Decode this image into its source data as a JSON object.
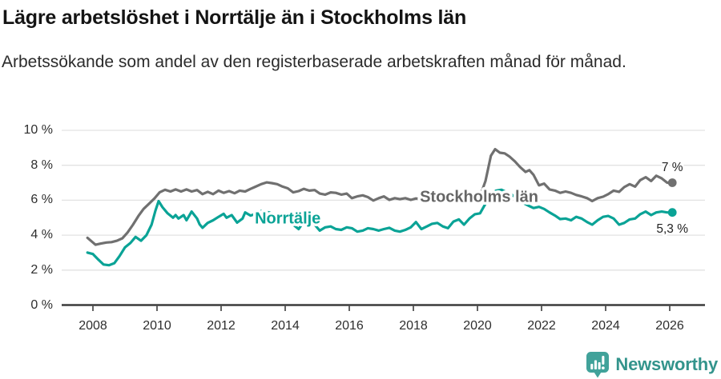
{
  "header": {
    "title": "Lägre arbetslöshet i Norrtälje än i Stockholms län",
    "subtitle": "Arbetssökande som andel av den registerbaserade arbetskraften månad för månad."
  },
  "chart_data": {
    "type": "line",
    "title": "Lägre arbetslöshet i Norrtälje än i Stockholms län",
    "subtitle": "Arbetssökande som andel av den registerbaserade arbetskraften månad för månad.",
    "grid": "horizontal",
    "legend_position": "inline-labels",
    "x_axis": {
      "range": [
        2007.8,
        2026.35
      ],
      "ticks": [
        2008,
        2010,
        2012,
        2014,
        2016,
        2018,
        2020,
        2022,
        2024,
        2026
      ],
      "tick_labels": [
        "2008",
        "2010",
        "2012",
        "2014",
        "2016",
        "2018",
        "2020",
        "2022",
        "2024",
        "2026"
      ]
    },
    "y_axis": {
      "range": [
        0,
        10
      ],
      "unit": "%",
      "ticks": [
        0,
        2,
        4,
        6,
        8,
        10
      ],
      "tick_labels": [
        "0 %",
        "2 %",
        "4 %",
        "6 %",
        "8 %",
        "10 %"
      ]
    },
    "series": [
      {
        "name": "Stockholms län",
        "color": "#707070",
        "label_color": "#666666",
        "line_label": {
          "text": "Stockholms län",
          "x": 2020.05,
          "y": 6.22
        },
        "end_label": "7 %",
        "end_value": 7.0,
        "end_label_offset": [
          0,
          -14.5
        ],
        "points": [
          [
            2007.83,
            3.85
          ],
          [
            2008.08,
            3.45
          ],
          [
            2008.25,
            3.52
          ],
          [
            2008.42,
            3.58
          ],
          [
            2008.58,
            3.6
          ],
          [
            2008.75,
            3.68
          ],
          [
            2008.92,
            3.82
          ],
          [
            2009.08,
            4.15
          ],
          [
            2009.25,
            4.6
          ],
          [
            2009.42,
            5.1
          ],
          [
            2009.58,
            5.5
          ],
          [
            2009.75,
            5.8
          ],
          [
            2009.92,
            6.1
          ],
          [
            2010.08,
            6.45
          ],
          [
            2010.25,
            6.6
          ],
          [
            2010.42,
            6.5
          ],
          [
            2010.58,
            6.62
          ],
          [
            2010.75,
            6.5
          ],
          [
            2010.92,
            6.62
          ],
          [
            2011.08,
            6.5
          ],
          [
            2011.25,
            6.58
          ],
          [
            2011.42,
            6.35
          ],
          [
            2011.58,
            6.48
          ],
          [
            2011.75,
            6.35
          ],
          [
            2011.92,
            6.55
          ],
          [
            2012.08,
            6.42
          ],
          [
            2012.25,
            6.52
          ],
          [
            2012.42,
            6.4
          ],
          [
            2012.58,
            6.55
          ],
          [
            2012.75,
            6.5
          ],
          [
            2012.92,
            6.65
          ],
          [
            2013.08,
            6.78
          ],
          [
            2013.25,
            6.92
          ],
          [
            2013.42,
            7.02
          ],
          [
            2013.58,
            6.98
          ],
          [
            2013.75,
            6.92
          ],
          [
            2013.92,
            6.78
          ],
          [
            2014.08,
            6.68
          ],
          [
            2014.25,
            6.45
          ],
          [
            2014.42,
            6.52
          ],
          [
            2014.58,
            6.65
          ],
          [
            2014.75,
            6.55
          ],
          [
            2014.92,
            6.58
          ],
          [
            2015.08,
            6.38
          ],
          [
            2015.25,
            6.32
          ],
          [
            2015.42,
            6.45
          ],
          [
            2015.58,
            6.42
          ],
          [
            2015.75,
            6.32
          ],
          [
            2015.92,
            6.38
          ],
          [
            2016.08,
            6.12
          ],
          [
            2016.25,
            6.22
          ],
          [
            2016.42,
            6.28
          ],
          [
            2016.58,
            6.18
          ],
          [
            2016.75,
            5.98
          ],
          [
            2016.92,
            6.12
          ],
          [
            2017.08,
            6.22
          ],
          [
            2017.25,
            6.02
          ],
          [
            2017.42,
            6.12
          ],
          [
            2017.58,
            6.06
          ],
          [
            2017.75,
            6.12
          ],
          [
            2017.92,
            6.02
          ],
          [
            2018.08,
            6.1
          ],
          [
            2018.25,
            6.05
          ],
          [
            2018.42,
            6.0
          ],
          [
            2018.58,
            6.1
          ],
          [
            2018.75,
            6.05
          ],
          [
            2018.92,
            6.0
          ],
          [
            2019.08,
            6.06
          ],
          [
            2019.25,
            6.15
          ],
          [
            2019.42,
            6.1
          ],
          [
            2019.58,
            6.16
          ],
          [
            2019.75,
            6.22
          ],
          [
            2019.92,
            6.26
          ],
          [
            2020.08,
            6.22
          ],
          [
            2020.25,
            7.1
          ],
          [
            2020.42,
            8.55
          ],
          [
            2020.55,
            8.92
          ],
          [
            2020.7,
            8.72
          ],
          [
            2020.85,
            8.68
          ],
          [
            2021.0,
            8.5
          ],
          [
            2021.17,
            8.22
          ],
          [
            2021.33,
            7.9
          ],
          [
            2021.5,
            7.62
          ],
          [
            2021.62,
            7.72
          ],
          [
            2021.75,
            7.45
          ],
          [
            2021.92,
            6.85
          ],
          [
            2022.08,
            6.95
          ],
          [
            2022.25,
            6.62
          ],
          [
            2022.42,
            6.55
          ],
          [
            2022.58,
            6.42
          ],
          [
            2022.75,
            6.5
          ],
          [
            2022.92,
            6.42
          ],
          [
            2023.08,
            6.3
          ],
          [
            2023.25,
            6.22
          ],
          [
            2023.42,
            6.12
          ],
          [
            2023.58,
            5.95
          ],
          [
            2023.75,
            6.12
          ],
          [
            2023.92,
            6.2
          ],
          [
            2024.08,
            6.35
          ],
          [
            2024.25,
            6.55
          ],
          [
            2024.42,
            6.48
          ],
          [
            2024.58,
            6.75
          ],
          [
            2024.75,
            6.92
          ],
          [
            2024.92,
            6.78
          ],
          [
            2025.08,
            7.15
          ],
          [
            2025.25,
            7.32
          ],
          [
            2025.42,
            7.1
          ],
          [
            2025.58,
            7.4
          ],
          [
            2025.75,
            7.25
          ],
          [
            2025.92,
            7.0
          ],
          [
            2026.08,
            7.0
          ]
        ]
      },
      {
        "name": "Norrtälje",
        "color": "#0aa396",
        "label_color": "#0aa396",
        "line_label": {
          "text": "Norrtälje",
          "x": 2014.08,
          "y": 5.0
        },
        "end_label": "5,3 %",
        "end_value": 5.3,
        "end_label_offset": [
          0,
          25.5
        ],
        "points": [
          [
            2007.83,
            3.0
          ],
          [
            2008.0,
            2.92
          ],
          [
            2008.17,
            2.6
          ],
          [
            2008.33,
            2.32
          ],
          [
            2008.5,
            2.28
          ],
          [
            2008.67,
            2.4
          ],
          [
            2008.83,
            2.8
          ],
          [
            2009.0,
            3.3
          ],
          [
            2009.17,
            3.55
          ],
          [
            2009.33,
            3.9
          ],
          [
            2009.5,
            3.68
          ],
          [
            2009.67,
            4.0
          ],
          [
            2009.83,
            4.6
          ],
          [
            2009.95,
            5.4
          ],
          [
            2010.05,
            5.95
          ],
          [
            2010.17,
            5.6
          ],
          [
            2010.33,
            5.25
          ],
          [
            2010.5,
            5.0
          ],
          [
            2010.58,
            5.15
          ],
          [
            2010.67,
            4.95
          ],
          [
            2010.83,
            5.15
          ],
          [
            2010.92,
            4.85
          ],
          [
            2011.08,
            5.35
          ],
          [
            2011.25,
            4.95
          ],
          [
            2011.33,
            4.62
          ],
          [
            2011.42,
            4.42
          ],
          [
            2011.58,
            4.7
          ],
          [
            2011.75,
            4.85
          ],
          [
            2011.92,
            5.05
          ],
          [
            2012.08,
            5.22
          ],
          [
            2012.17,
            5.0
          ],
          [
            2012.33,
            5.15
          ],
          [
            2012.5,
            4.72
          ],
          [
            2012.67,
            4.95
          ],
          [
            2012.75,
            5.3
          ],
          [
            2012.92,
            5.12
          ],
          [
            2013.08,
            5.22
          ],
          [
            2013.25,
            5.38
          ],
          [
            2013.5,
            5.3
          ],
          [
            2013.75,
            5.12
          ],
          [
            2013.92,
            4.95
          ],
          [
            2014.08,
            4.85
          ],
          [
            2014.25,
            4.6
          ],
          [
            2014.42,
            4.35
          ],
          [
            2014.58,
            4.78
          ],
          [
            2014.75,
            5.0
          ],
          [
            2014.92,
            4.6
          ],
          [
            2015.08,
            4.26
          ],
          [
            2015.25,
            4.45
          ],
          [
            2015.42,
            4.5
          ],
          [
            2015.58,
            4.35
          ],
          [
            2015.75,
            4.3
          ],
          [
            2015.92,
            4.45
          ],
          [
            2016.08,
            4.4
          ],
          [
            2016.25,
            4.2
          ],
          [
            2016.42,
            4.26
          ],
          [
            2016.58,
            4.4
          ],
          [
            2016.75,
            4.35
          ],
          [
            2016.92,
            4.26
          ],
          [
            2017.08,
            4.35
          ],
          [
            2017.25,
            4.42
          ],
          [
            2017.42,
            4.26
          ],
          [
            2017.58,
            4.2
          ],
          [
            2017.75,
            4.3
          ],
          [
            2017.92,
            4.45
          ],
          [
            2018.08,
            4.75
          ],
          [
            2018.25,
            4.35
          ],
          [
            2018.42,
            4.5
          ],
          [
            2018.58,
            4.65
          ],
          [
            2018.75,
            4.7
          ],
          [
            2018.92,
            4.5
          ],
          [
            2019.08,
            4.4
          ],
          [
            2019.25,
            4.78
          ],
          [
            2019.42,
            4.9
          ],
          [
            2019.58,
            4.6
          ],
          [
            2019.75,
            4.95
          ],
          [
            2019.92,
            5.2
          ],
          [
            2020.08,
            5.25
          ],
          [
            2020.25,
            5.8
          ],
          [
            2020.42,
            6.3
          ],
          [
            2020.58,
            6.55
          ],
          [
            2020.75,
            6.6
          ],
          [
            2020.92,
            6.45
          ],
          [
            2021.08,
            6.3
          ],
          [
            2021.25,
            6.1
          ],
          [
            2021.42,
            5.85
          ],
          [
            2021.58,
            5.7
          ],
          [
            2021.75,
            5.55
          ],
          [
            2021.92,
            5.62
          ],
          [
            2022.08,
            5.5
          ],
          [
            2022.25,
            5.3
          ],
          [
            2022.42,
            5.12
          ],
          [
            2022.58,
            4.92
          ],
          [
            2022.75,
            4.95
          ],
          [
            2022.92,
            4.85
          ],
          [
            2023.08,
            5.05
          ],
          [
            2023.25,
            4.95
          ],
          [
            2023.42,
            4.75
          ],
          [
            2023.58,
            4.6
          ],
          [
            2023.75,
            4.85
          ],
          [
            2023.92,
            5.05
          ],
          [
            2024.08,
            5.1
          ],
          [
            2024.25,
            4.95
          ],
          [
            2024.42,
            4.6
          ],
          [
            2024.58,
            4.7
          ],
          [
            2024.75,
            4.9
          ],
          [
            2024.92,
            4.95
          ],
          [
            2025.08,
            5.2
          ],
          [
            2025.25,
            5.35
          ],
          [
            2025.42,
            5.15
          ],
          [
            2025.58,
            5.3
          ],
          [
            2025.75,
            5.35
          ],
          [
            2025.92,
            5.3
          ],
          [
            2026.08,
            5.3
          ]
        ]
      }
    ]
  },
  "footer": {
    "brand": "Newsworthy",
    "logo_icon": "bar-chart-speech-bubble-icon",
    "brand_color": "#33948c"
  },
  "colors": {
    "stockholm_line": "#707070",
    "norrtalje_line": "#0aa396",
    "gridline": "#e2e2e2",
    "axis": "#3c3c3c",
    "text": "#2e2e2e"
  }
}
